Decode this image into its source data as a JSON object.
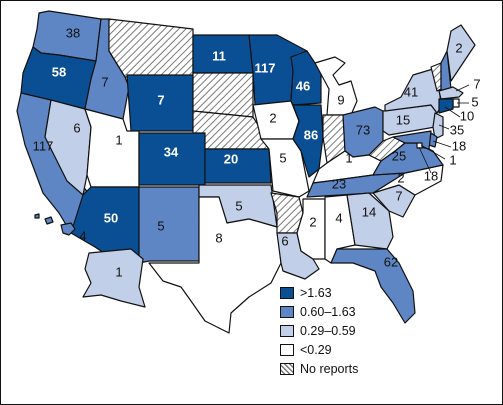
{
  "map": {
    "colors": {
      "dark": "#0a4f93",
      "medium": "#5f86c4",
      "light": "#c2cfe8",
      "white": "#ffffff",
      "hatch_line": "#7a7a7a",
      "border": "#111111"
    },
    "states": [
      {
        "id": "WA",
        "category": "medium",
        "value": "38"
      },
      {
        "id": "OR",
        "category": "dark",
        "value": "58"
      },
      {
        "id": "ID",
        "category": "medium",
        "value": "7"
      },
      {
        "id": "MT",
        "category": "none",
        "value": ""
      },
      {
        "id": "WY",
        "category": "dark",
        "value": "7"
      },
      {
        "id": "CA",
        "category": "medium",
        "value": "117"
      },
      {
        "id": "NV",
        "category": "light",
        "value": "6"
      },
      {
        "id": "UT",
        "category": "white",
        "value": "1"
      },
      {
        "id": "AZ",
        "category": "dark",
        "value": "50"
      },
      {
        "id": "CO",
        "category": "dark",
        "value": "34"
      },
      {
        "id": "NM",
        "category": "medium",
        "value": "5"
      },
      {
        "id": "ND",
        "category": "dark",
        "value": "11"
      },
      {
        "id": "SD",
        "category": "none",
        "value": ""
      },
      {
        "id": "NE",
        "category": "none",
        "value": ""
      },
      {
        "id": "KS",
        "category": "dark",
        "value": "20"
      },
      {
        "id": "OK",
        "category": "light",
        "value": "5"
      },
      {
        "id": "TX",
        "category": "white",
        "value": "8"
      },
      {
        "id": "MN",
        "category": "dark",
        "value": "117"
      },
      {
        "id": "IA",
        "category": "white",
        "value": "2"
      },
      {
        "id": "MO",
        "category": "white",
        "value": "5"
      },
      {
        "id": "AR",
        "category": "none",
        "value": ""
      },
      {
        "id": "LA",
        "category": "light",
        "value": "6"
      },
      {
        "id": "WI",
        "category": "dark",
        "value": "46"
      },
      {
        "id": "IL",
        "category": "dark",
        "value": "86"
      },
      {
        "id": "MI",
        "category": "white",
        "value": "9"
      },
      {
        "id": "IN",
        "category": "none",
        "value": ""
      },
      {
        "id": "OH",
        "category": "medium",
        "value": "73"
      },
      {
        "id": "KY",
        "category": "white",
        "value": "1"
      },
      {
        "id": "TN",
        "category": "medium",
        "value": "23"
      },
      {
        "id": "MS",
        "category": "white",
        "value": "2"
      },
      {
        "id": "AL",
        "category": "white",
        "value": "4"
      },
      {
        "id": "GA",
        "category": "light",
        "value": "14"
      },
      {
        "id": "FL",
        "category": "medium",
        "value": "62"
      },
      {
        "id": "SC",
        "category": "light",
        "value": "7"
      },
      {
        "id": "NC",
        "category": "white",
        "value": "2"
      },
      {
        "id": "VA",
        "category": "medium",
        "value": "25"
      },
      {
        "id": "WV",
        "category": "none",
        "value": ""
      },
      {
        "id": "PA",
        "category": "light",
        "value": "15"
      },
      {
        "id": "NY",
        "category": "light",
        "value": "41"
      },
      {
        "id": "VT",
        "category": "none",
        "value": ""
      },
      {
        "id": "NH",
        "category": "medium",
        "value": ""
      },
      {
        "id": "ME",
        "category": "light",
        "value": "2"
      },
      {
        "id": "MA",
        "category": "light",
        "value": "7"
      },
      {
        "id": "RI",
        "category": "white",
        "value": "5"
      },
      {
        "id": "CT",
        "category": "dark",
        "value": "10"
      },
      {
        "id": "NJ",
        "category": "light",
        "value": "35"
      },
      {
        "id": "DE",
        "category": "medium",
        "value": "18"
      },
      {
        "id": "MD",
        "category": "medium",
        "value": "1"
      },
      {
        "id": "DC",
        "category": "white",
        "value": "18"
      },
      {
        "id": "AK",
        "category": "light",
        "value": "1"
      },
      {
        "id": "HI",
        "category": "medium",
        "value": "4"
      }
    ]
  },
  "legend": {
    "items": [
      {
        "label": ">1.63",
        "category": "dark"
      },
      {
        "label": "0.60–1.63",
        "category": "medium"
      },
      {
        "label": "0.29–0.59",
        "category": "light"
      },
      {
        "label": "<0.29",
        "category": "white"
      },
      {
        "label": "No reports",
        "category": "none"
      }
    ]
  }
}
